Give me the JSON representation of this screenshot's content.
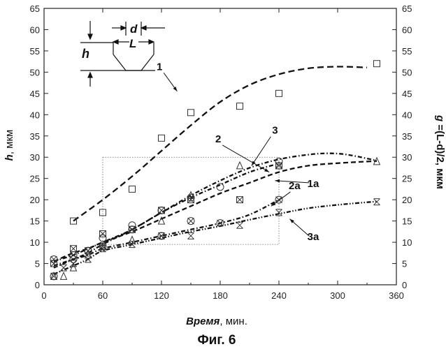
{
  "chart_data": {
    "type": "scatter",
    "caption": "Фиг. 6",
    "xlabel_italic": "Время",
    "xlabel_rest": ", мин.",
    "ylabel_left_italic": "h",
    "ylabel_left_rest": ", мкм",
    "ylabel_right_italic": "g",
    "ylabel_right_rest": " =(L-d)/2, мкм",
    "xlim": [
      0,
      360
    ],
    "ylim": [
      0,
      65
    ],
    "xticks": [
      0,
      60,
      120,
      180,
      240,
      300,
      360
    ],
    "yticks": [
      0,
      5,
      10,
      15,
      20,
      25,
      30,
      35,
      40,
      45,
      50,
      55,
      60,
      65
    ],
    "inset": {
      "label_h": "h",
      "label_d": "d",
      "label_L": "L"
    },
    "selection_box": {
      "x": [
        60,
        240
      ],
      "y": [
        9.5,
        30
      ]
    },
    "curve_labels": [
      {
        "text": "1",
        "x": 118,
        "y": 50.5,
        "arrow_to": [
          136,
          45.5
        ]
      },
      {
        "text": "2",
        "x": 178,
        "y": 33.5,
        "arrow_to": [
          230,
          26.5
        ]
      },
      {
        "text": "3",
        "x": 236,
        "y": 35.5,
        "arrow_to": [
          212,
          28
        ]
      },
      {
        "text": "1a",
        "x": 275,
        "y": 23,
        "arrow_to": [
          236,
          24.5
        ]
      },
      {
        "text": "2a",
        "x": 256,
        "y": 22.5,
        "arrow_to": [
          232,
          18.5
        ]
      },
      {
        "text": "3a",
        "x": 275,
        "y": 10.5,
        "arrow_to": [
          251,
          15.5
        ]
      }
    ],
    "series": [
      {
        "marker": "square",
        "points": [
          [
            30,
            15
          ],
          [
            60,
            17
          ],
          [
            90,
            22.5
          ],
          [
            120,
            34.5
          ],
          [
            150,
            40.5
          ],
          [
            200,
            42
          ],
          [
            240,
            45
          ],
          [
            340,
            52
          ]
        ]
      },
      {
        "marker": "triangle",
        "points": [
          [
            10,
            2
          ],
          [
            20,
            2
          ],
          [
            30,
            4
          ],
          [
            45,
            7
          ],
          [
            60,
            9
          ],
          [
            90,
            10.5
          ],
          [
            120,
            15
          ],
          [
            150,
            21
          ],
          [
            200,
            28
          ],
          [
            240,
            28
          ],
          [
            340,
            29
          ]
        ]
      },
      {
        "marker": "circle",
        "points": [
          [
            10,
            2
          ],
          [
            30,
            6
          ],
          [
            45,
            8
          ],
          [
            60,
            11
          ],
          [
            90,
            14
          ],
          [
            120,
            17.5
          ],
          [
            150,
            20.5
          ],
          [
            180,
            23
          ],
          [
            240,
            29
          ]
        ]
      },
      {
        "marker": "square-x",
        "points": [
          [
            10,
            5
          ],
          [
            30,
            8.5
          ],
          [
            45,
            8
          ],
          [
            60,
            12
          ],
          [
            90,
            13
          ],
          [
            120,
            17.5
          ],
          [
            150,
            20
          ],
          [
            200,
            20
          ],
          [
            240,
            28
          ]
        ]
      },
      {
        "marker": "circle-x",
        "points": [
          [
            10,
            6
          ],
          [
            30,
            7
          ],
          [
            45,
            8
          ],
          [
            60,
            9
          ],
          [
            90,
            13
          ],
          [
            120,
            11.5
          ],
          [
            150,
            15
          ],
          [
            180,
            14.5
          ],
          [
            240,
            20
          ]
        ]
      },
      {
        "marker": "star",
        "points": [
          [
            10,
            2
          ],
          [
            20,
            4
          ],
          [
            30,
            5
          ],
          [
            45,
            6
          ],
          [
            60,
            8.5
          ],
          [
            90,
            9.5
          ],
          [
            120,
            11.5
          ],
          [
            150,
            11.5
          ],
          [
            200,
            14
          ],
          [
            240,
            17
          ],
          [
            340,
            19.5
          ]
        ]
      }
    ],
    "fit_curves": [
      {
        "style": "dash-long",
        "points": [
          [
            30,
            15
          ],
          [
            60,
            20
          ],
          [
            90,
            25.5
          ],
          [
            120,
            31.5
          ],
          [
            150,
            37.5
          ],
          [
            180,
            43
          ],
          [
            210,
            47
          ],
          [
            240,
            49.5
          ],
          [
            270,
            50.9
          ],
          [
            300,
            51.3
          ],
          [
            330,
            51.1
          ]
        ]
      },
      {
        "style": "dash-dot",
        "points": [
          [
            10,
            5.5
          ],
          [
            30,
            7
          ],
          [
            45,
            8.5
          ],
          [
            60,
            10
          ],
          [
            90,
            13
          ],
          [
            120,
            17
          ],
          [
            150,
            20.5
          ],
          [
            180,
            23.5
          ],
          [
            210,
            26.5
          ],
          [
            235,
            28.2
          ]
        ]
      },
      {
        "style": "dash-dot",
        "points": [
          [
            10,
            4
          ],
          [
            30,
            6
          ],
          [
            45,
            7.5
          ],
          [
            60,
            9.5
          ],
          [
            90,
            13
          ],
          [
            120,
            17
          ],
          [
            150,
            21
          ],
          [
            180,
            24.5
          ],
          [
            210,
            27.5
          ],
          [
            240,
            29.5
          ],
          [
            270,
            30.6
          ],
          [
            290,
            30.9
          ],
          [
            310,
            30.6
          ],
          [
            340,
            29.2
          ]
        ]
      },
      {
        "style": "dash",
        "points": [
          [
            10,
            5.5
          ],
          [
            30,
            7.5
          ],
          [
            45,
            8.5
          ],
          [
            60,
            10
          ],
          [
            90,
            12.5
          ],
          [
            120,
            15.5
          ],
          [
            150,
            18.5
          ],
          [
            180,
            21.5
          ],
          [
            210,
            24
          ],
          [
            240,
            26.5
          ],
          [
            270,
            28
          ],
          [
            300,
            28.6
          ],
          [
            340,
            29.1
          ]
        ]
      },
      {
        "style": "dash-dot",
        "points": [
          [
            10,
            4.5
          ],
          [
            30,
            6
          ],
          [
            45,
            7
          ],
          [
            60,
            8.5
          ],
          [
            90,
            10
          ],
          [
            120,
            11.5
          ],
          [
            150,
            13
          ],
          [
            180,
            14.5
          ],
          [
            210,
            16.5
          ],
          [
            240,
            20
          ]
        ]
      },
      {
        "style": "dash-dot-dot",
        "points": [
          [
            10,
            2.5
          ],
          [
            30,
            4.5
          ],
          [
            45,
            6
          ],
          [
            60,
            8
          ],
          [
            90,
            9.5
          ],
          [
            120,
            11
          ],
          [
            150,
            12.5
          ],
          [
            180,
            13.8
          ],
          [
            210,
            15.3
          ],
          [
            240,
            16.7
          ],
          [
            270,
            18
          ],
          [
            300,
            18.8
          ],
          [
            340,
            19.6
          ]
        ]
      }
    ]
  }
}
